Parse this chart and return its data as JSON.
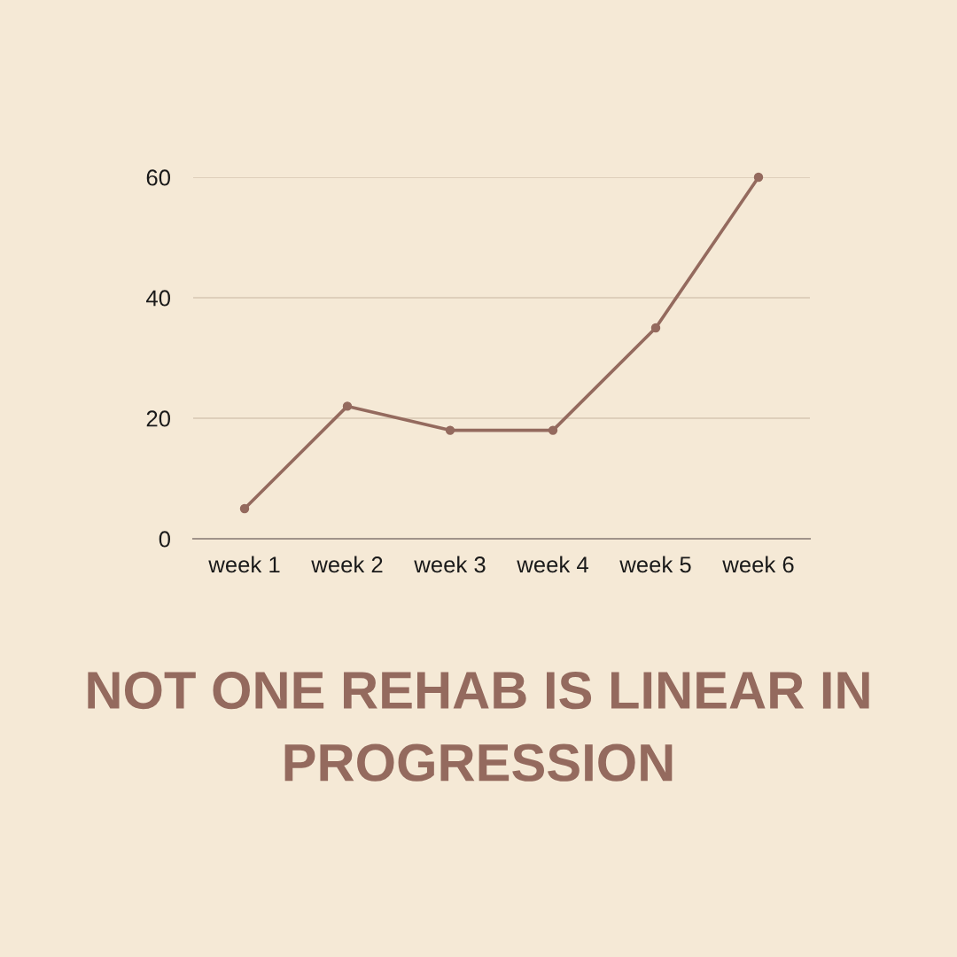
{
  "chart_data": {
    "type": "line",
    "title": "NOT ONE REHAB IS LINEAR IN PROGRESSION",
    "categories": [
      "week 1",
      "week 2",
      "week 3",
      "week 4",
      "week 5",
      "week 6"
    ],
    "series": [
      {
        "color": "#946a5e",
        "values": [
          5,
          22,
          18,
          18,
          35,
          60
        ]
      }
    ],
    "ylim": [
      0,
      60
    ],
    "yticks": [
      0,
      20,
      40,
      60
    ],
    "grid": "y",
    "marker": "circle",
    "line_style": "solid"
  }
}
